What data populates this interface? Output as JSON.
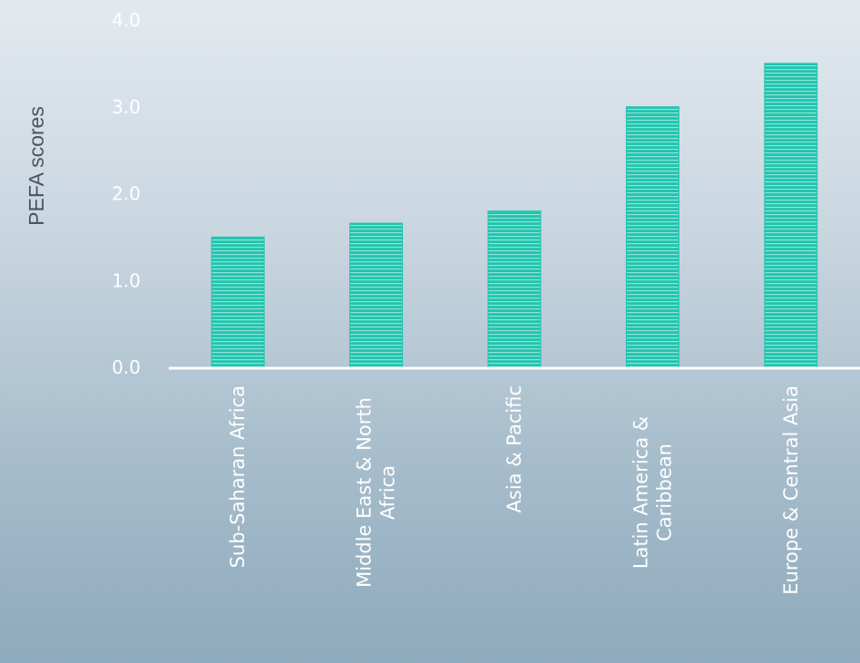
{
  "chart_data": {
    "type": "bar",
    "title": "",
    "xlabel": "",
    "ylabel": "PEFA scores",
    "categories": [
      [
        "Sub-Saharan Africa"
      ],
      [
        "Middle East & North",
        "Africa"
      ],
      [
        "Asia & Pacific"
      ],
      [
        "Latin America &",
        "Caribbean"
      ],
      [
        "Europe & Central Asia"
      ]
    ],
    "values": [
      1.5,
      1.66,
      1.8,
      3.0,
      3.5
    ],
    "ylim": [
      0,
      4
    ],
    "yticks": [
      "0.0",
      "1.0",
      "2.0",
      "3.0",
      "4.0"
    ],
    "grid": false,
    "colors": {
      "bar": "#21c4ae",
      "bar_stripe": "#8ee4d6",
      "axis": "#ffffff"
    }
  }
}
